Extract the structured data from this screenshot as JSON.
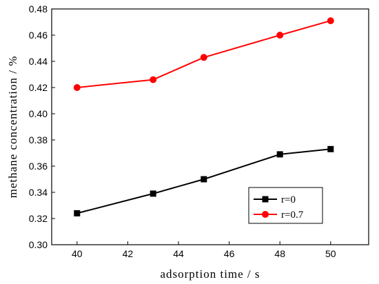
{
  "chart_data": {
    "type": "line",
    "xlabel": "adsorption time / s",
    "ylabel": "methane concentration / %",
    "xlim": [
      39,
      51.5
    ],
    "ylim": [
      0.3,
      0.48
    ],
    "xticks": [
      40,
      42,
      44,
      46,
      48,
      50
    ],
    "yticks": [
      0.3,
      0.32,
      0.34,
      0.36,
      0.38,
      0.4,
      0.42,
      0.44,
      0.46,
      0.48
    ],
    "grid": false,
    "legend_position": "lower-right",
    "series": [
      {
        "name": "r=0",
        "color": "#000000",
        "marker": "square",
        "x": [
          40,
          43,
          45,
          48,
          50
        ],
        "y": [
          0.324,
          0.339,
          0.35,
          0.369,
          0.373
        ]
      },
      {
        "name": "r=0.7",
        "color": "#ff0000",
        "marker": "circle",
        "x": [
          40,
          43,
          45,
          48,
          50
        ],
        "y": [
          0.42,
          0.426,
          0.443,
          0.46,
          0.471
        ]
      }
    ]
  }
}
